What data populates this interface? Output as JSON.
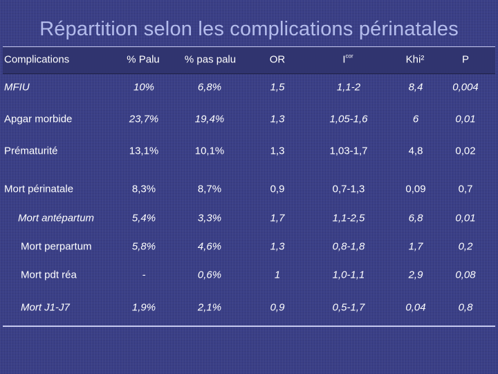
{
  "slide": {
    "title": "Répartition selon les complications périnatales"
  },
  "table": {
    "headers": {
      "complications": "Complications",
      "palu": "% Palu",
      "pas_palu": "% pas palu",
      "or": "OR",
      "ic": "I",
      "ic_sup": "cor",
      "khi": "Khi²",
      "p": "P"
    },
    "rows": [
      {
        "label": "MFIU",
        "palu": "10%",
        "pas_palu": "6,8%",
        "or": "1,5",
        "ic": "1,1-2",
        "khi": "8,4",
        "p": "0,004"
      },
      {
        "label": "Apgar morbide",
        "palu": "23,7%",
        "pas_palu": "19,4%",
        "or": "1,3",
        "ic": "1,05-1,6",
        "khi": "6",
        "p": "0,01"
      },
      {
        "label": "Prématurité",
        "palu": "13,1%",
        "pas_palu": "10,1%",
        "or": "1,3",
        "ic": "1,03-1,7",
        "khi": "4,8",
        "p": "0,02"
      },
      {
        "label": "Mort périnatale",
        "palu": "8,3%",
        "pas_palu": "8,7%",
        "or": "0,9",
        "ic": "0,7-1,3",
        "khi": "0,09",
        "p": "0,7"
      },
      {
        "label": "Mort antépartum",
        "palu": "5,4%",
        "pas_palu": "3,3%",
        "or": "1,7",
        "ic": "1,1-2,5",
        "khi": "6,8",
        "p": "0,01"
      },
      {
        "label": "Mort perpartum",
        "palu": "5,8%",
        "pas_palu": "4,6%",
        "or": "1,3",
        "ic": "0,8-1,8",
        "khi": "1,7",
        "p": "0,2"
      },
      {
        "label": "Mort pdt réa",
        "palu": "-",
        "pas_palu": "0,6%",
        "or": "1",
        "ic": "1,0-1,1",
        "khi": "2,9",
        "p": "0,08"
      },
      {
        "label": "Mort J1-J7",
        "palu": "1,9%",
        "pas_palu": "2,1%",
        "or": "0,9",
        "ic": "0,5-1,7",
        "khi": "0,04",
        "p": "0,8"
      }
    ]
  },
  "colors": {
    "background": "#3a3f86",
    "title": "#b4bcec",
    "text": "#ffffff",
    "rule": "#c6c9ee"
  }
}
